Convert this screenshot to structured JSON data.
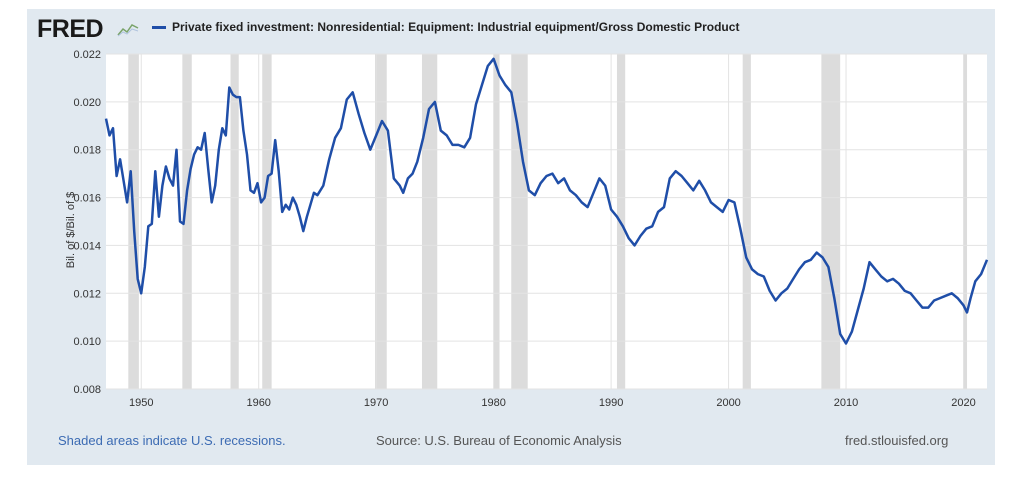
{
  "header": {
    "logo_text": "FRED",
    "logo_icon": "trend-chart-icon",
    "series_title": "Private fixed investment: Nonresidential: Equipment: Industrial equipment/Gross Domestic Product"
  },
  "footer": {
    "recession_note": "Shaded areas indicate U.S. recessions.",
    "source": "Source: U.S. Bureau of Economic Analysis",
    "site": "fred.stlouisfed.org"
  },
  "colors": {
    "line": "#1f4ea8",
    "recession": "#dcdcdc",
    "frame": "#e1e9f0",
    "note_link": "#3c6bb3"
  },
  "chart_data": {
    "type": "line",
    "title": "Private fixed investment: Nonresidential: Equipment: Industrial equipment/Gross Domestic Product",
    "xlabel": "",
    "ylabel": "Bil. of $/Bil. of $",
    "xlim": [
      1947,
      2022
    ],
    "ylim": [
      0.008,
      0.022
    ],
    "yticks": [
      0.008,
      0.01,
      0.012,
      0.014,
      0.016,
      0.018,
      0.02,
      0.022
    ],
    "ytick_labels": [
      "0.008",
      "0.010",
      "0.012",
      "0.014",
      "0.016",
      "0.018",
      "0.020",
      "0.022"
    ],
    "xticks": [
      1950,
      1960,
      1970,
      1980,
      1990,
      2000,
      2010,
      2020
    ],
    "xtick_labels": [
      "1950",
      "1960",
      "1970",
      "1980",
      "1990",
      "2000",
      "2010",
      "2020"
    ],
    "grid": true,
    "recessions": [
      [
        1948.9,
        1949.8
      ],
      [
        1953.5,
        1954.3
      ],
      [
        1957.6,
        1958.3
      ],
      [
        1960.3,
        1961.1
      ],
      [
        1969.9,
        1970.9
      ],
      [
        1973.9,
        1975.2
      ],
      [
        1980.0,
        1980.5
      ],
      [
        1981.5,
        1982.9
      ],
      [
        1990.5,
        1991.2
      ],
      [
        2001.2,
        2001.9
      ],
      [
        2007.9,
        2009.5
      ],
      [
        2020.0,
        2020.3
      ]
    ],
    "series": [
      {
        "values": [
          [
            1947.0,
            0.0193
          ],
          [
            1947.3,
            0.0186
          ],
          [
            1947.6,
            0.0189
          ],
          [
            1947.9,
            0.0169
          ],
          [
            1948.2,
            0.0176
          ],
          [
            1948.5,
            0.0167
          ],
          [
            1948.8,
            0.0158
          ],
          [
            1949.1,
            0.0171
          ],
          [
            1949.4,
            0.0146
          ],
          [
            1949.7,
            0.0126
          ],
          [
            1950.0,
            0.012
          ],
          [
            1950.3,
            0.0131
          ],
          [
            1950.6,
            0.0148
          ],
          [
            1950.9,
            0.0149
          ],
          [
            1951.2,
            0.0171
          ],
          [
            1951.5,
            0.0152
          ],
          [
            1951.8,
            0.0165
          ],
          [
            1952.1,
            0.0173
          ],
          [
            1952.4,
            0.0168
          ],
          [
            1952.7,
            0.0165
          ],
          [
            1953.0,
            0.018
          ],
          [
            1953.3,
            0.015
          ],
          [
            1953.6,
            0.0149
          ],
          [
            1953.9,
            0.0163
          ],
          [
            1954.2,
            0.0172
          ],
          [
            1954.5,
            0.0178
          ],
          [
            1954.8,
            0.0181
          ],
          [
            1955.1,
            0.018
          ],
          [
            1955.4,
            0.0187
          ],
          [
            1955.7,
            0.0172
          ],
          [
            1956.0,
            0.0158
          ],
          [
            1956.3,
            0.0165
          ],
          [
            1956.6,
            0.018
          ],
          [
            1956.9,
            0.0189
          ],
          [
            1957.2,
            0.0186
          ],
          [
            1957.5,
            0.0206
          ],
          [
            1957.8,
            0.0203
          ],
          [
            1958.1,
            0.0202
          ],
          [
            1958.4,
            0.0202
          ],
          [
            1958.7,
            0.0188
          ],
          [
            1959.0,
            0.0178
          ],
          [
            1959.3,
            0.0163
          ],
          [
            1959.6,
            0.0162
          ],
          [
            1959.9,
            0.0166
          ],
          [
            1960.2,
            0.0158
          ],
          [
            1960.5,
            0.016
          ],
          [
            1960.8,
            0.0169
          ],
          [
            1961.1,
            0.017
          ],
          [
            1961.4,
            0.0184
          ],
          [
            1961.7,
            0.0171
          ],
          [
            1962.0,
            0.0154
          ],
          [
            1962.3,
            0.0157
          ],
          [
            1962.6,
            0.0155
          ],
          [
            1962.9,
            0.016
          ],
          [
            1963.2,
            0.0157
          ],
          [
            1963.5,
            0.0152
          ],
          [
            1963.8,
            0.0146
          ],
          [
            1964.1,
            0.0152
          ],
          [
            1964.4,
            0.0157
          ],
          [
            1964.7,
            0.0162
          ],
          [
            1965.0,
            0.0161
          ],
          [
            1965.5,
            0.0165
          ],
          [
            1966.0,
            0.0176
          ],
          [
            1966.5,
            0.0185
          ],
          [
            1967.0,
            0.0189
          ],
          [
            1967.5,
            0.0201
          ],
          [
            1968.0,
            0.0204
          ],
          [
            1968.5,
            0.0195
          ],
          [
            1969.0,
            0.0187
          ],
          [
            1969.5,
            0.018
          ],
          [
            1970.0,
            0.0186
          ],
          [
            1970.5,
            0.0192
          ],
          [
            1971.0,
            0.0188
          ],
          [
            1971.5,
            0.0168
          ],
          [
            1972.0,
            0.0165
          ],
          [
            1972.3,
            0.0162
          ],
          [
            1972.7,
            0.0168
          ],
          [
            1973.1,
            0.017
          ],
          [
            1973.5,
            0.0175
          ],
          [
            1974.0,
            0.0185
          ],
          [
            1974.5,
            0.0197
          ],
          [
            1975.0,
            0.02
          ],
          [
            1975.5,
            0.0188
          ],
          [
            1976.0,
            0.0186
          ],
          [
            1976.5,
            0.0182
          ],
          [
            1977.0,
            0.0182
          ],
          [
            1977.5,
            0.0181
          ],
          [
            1978.0,
            0.0185
          ],
          [
            1978.5,
            0.0199
          ],
          [
            1979.0,
            0.0207
          ],
          [
            1979.5,
            0.0215
          ],
          [
            1980.0,
            0.0218
          ],
          [
            1980.5,
            0.0211
          ],
          [
            1981.0,
            0.0207
          ],
          [
            1981.5,
            0.0204
          ],
          [
            1982.0,
            0.0191
          ],
          [
            1982.5,
            0.0175
          ],
          [
            1983.0,
            0.0163
          ],
          [
            1983.5,
            0.0161
          ],
          [
            1984.0,
            0.0166
          ],
          [
            1984.5,
            0.0169
          ],
          [
            1985.0,
            0.017
          ],
          [
            1985.5,
            0.0166
          ],
          [
            1986.0,
            0.0168
          ],
          [
            1986.5,
            0.0163
          ],
          [
            1987.0,
            0.0161
          ],
          [
            1987.5,
            0.0158
          ],
          [
            1988.0,
            0.0156
          ],
          [
            1988.5,
            0.0162
          ],
          [
            1989.0,
            0.0168
          ],
          [
            1989.5,
            0.0165
          ],
          [
            1990.0,
            0.0155
          ],
          [
            1990.5,
            0.0152
          ],
          [
            1991.0,
            0.0148
          ],
          [
            1991.5,
            0.0143
          ],
          [
            1992.0,
            0.014
          ],
          [
            1992.5,
            0.0144
          ],
          [
            1993.0,
            0.0147
          ],
          [
            1993.5,
            0.0148
          ],
          [
            1994.0,
            0.0154
          ],
          [
            1994.5,
            0.0156
          ],
          [
            1995.0,
            0.0168
          ],
          [
            1995.5,
            0.0171
          ],
          [
            1996.0,
            0.0169
          ],
          [
            1996.5,
            0.0166
          ],
          [
            1997.0,
            0.0163
          ],
          [
            1997.5,
            0.0167
          ],
          [
            1998.0,
            0.0163
          ],
          [
            1998.5,
            0.0158
          ],
          [
            1999.0,
            0.0156
          ],
          [
            1999.5,
            0.0154
          ],
          [
            2000.0,
            0.0159
          ],
          [
            2000.5,
            0.0158
          ],
          [
            2001.0,
            0.0147
          ],
          [
            2001.5,
            0.0135
          ],
          [
            2002.0,
            0.013
          ],
          [
            2002.5,
            0.0128
          ],
          [
            2003.0,
            0.0127
          ],
          [
            2003.5,
            0.0121
          ],
          [
            2004.0,
            0.0117
          ],
          [
            2004.5,
            0.012
          ],
          [
            2005.0,
            0.0122
          ],
          [
            2005.5,
            0.0126
          ],
          [
            2006.0,
            0.013
          ],
          [
            2006.5,
            0.0133
          ],
          [
            2007.0,
            0.0134
          ],
          [
            2007.5,
            0.0137
          ],
          [
            2008.0,
            0.0135
          ],
          [
            2008.5,
            0.0131
          ],
          [
            2009.0,
            0.0118
          ],
          [
            2009.5,
            0.0103
          ],
          [
            2010.0,
            0.0099
          ],
          [
            2010.5,
            0.0104
          ],
          [
            2011.0,
            0.0113
          ],
          [
            2011.5,
            0.0122
          ],
          [
            2012.0,
            0.0133
          ],
          [
            2012.5,
            0.013
          ],
          [
            2013.0,
            0.0127
          ],
          [
            2013.5,
            0.0125
          ],
          [
            2014.0,
            0.0126
          ],
          [
            2014.5,
            0.0124
          ],
          [
            2015.0,
            0.0121
          ],
          [
            2015.5,
            0.012
          ],
          [
            2016.0,
            0.0117
          ],
          [
            2016.5,
            0.0114
          ],
          [
            2017.0,
            0.0114
          ],
          [
            2017.5,
            0.0117
          ],
          [
            2018.0,
            0.0118
          ],
          [
            2018.5,
            0.0119
          ],
          [
            2019.0,
            0.012
          ],
          [
            2019.5,
            0.0118
          ],
          [
            2020.0,
            0.0115
          ],
          [
            2020.3,
            0.0112
          ],
          [
            2020.6,
            0.0118
          ],
          [
            2021.0,
            0.0125
          ],
          [
            2021.5,
            0.0128
          ],
          [
            2022.0,
            0.0134
          ]
        ]
      }
    ]
  }
}
